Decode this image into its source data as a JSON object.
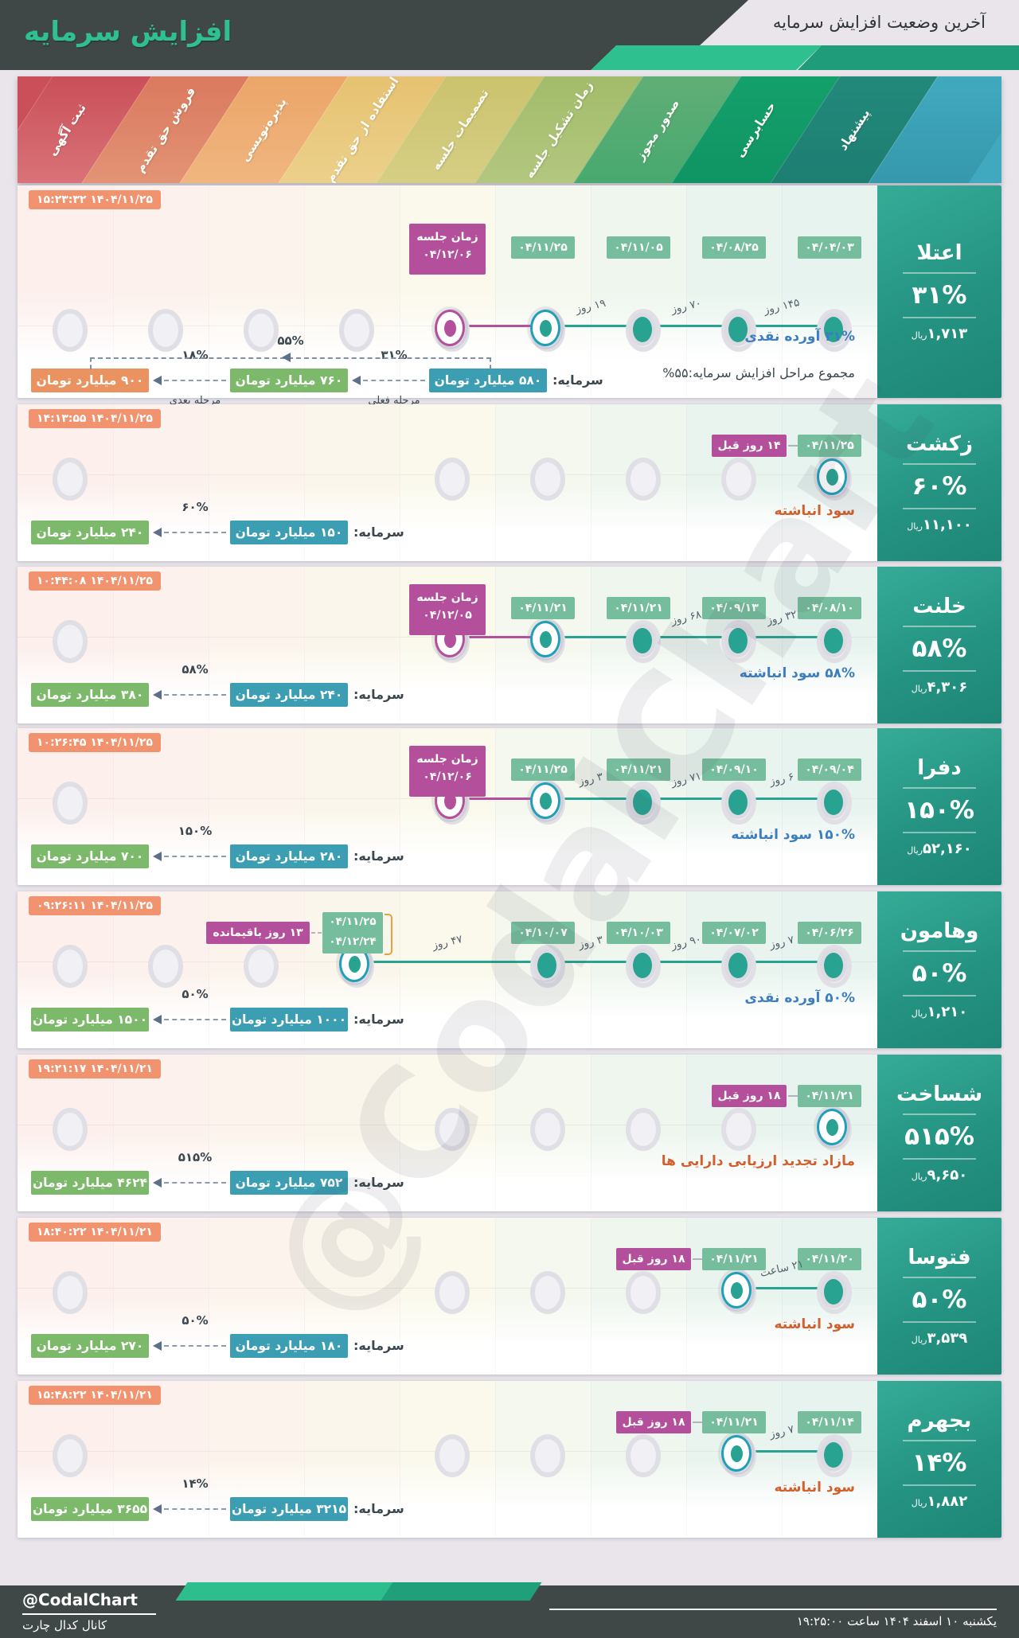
{
  "theme": {
    "accent_green": "#2ebd8d",
    "header_bg": "#3f4846",
    "page_bg": "#e9e5eb",
    "timestamp_badge": "#f2936f",
    "date_badge": "#76bd9e",
    "magenta": "#b4509b",
    "teal_dot": "#28a392",
    "ring_teal": "#1f9fb8",
    "cap_teal": "#3b9eb3",
    "cap_green": "#7cb96a",
    "cap_orange": "#eb9261",
    "note_blue": "#3d7ec1",
    "note_orange": "#d2602f",
    "range_bracket": "#e8a13c"
  },
  "header": {
    "title": "افزایش سرمایه",
    "subtitle": "آخرین وضعیت افزایش سرمایه"
  },
  "ribbon": {
    "stages": [
      {
        "label": "ثبت آگهی",
        "c1": "#ca4f58",
        "c2": "#d97379"
      },
      {
        "label": "فروش حق تقدم",
        "c1": "#da795e",
        "c2": "#e39375"
      },
      {
        "label": "پذیره‌نویسی",
        "c1": "#eba569",
        "c2": "#f0b67f"
      },
      {
        "label": "استفاده از حق تقدم",
        "c1": "#e6c271",
        "c2": "#ecd18b"
      },
      {
        "label": "تصمیمات جلسه",
        "c1": "#cbc36d",
        "c2": "#d6ce84"
      },
      {
        "label": "زمان تشکیل جلسه",
        "c1": "#a2bc6a",
        "c2": "#b3c77f"
      },
      {
        "label": "صدور مجوز",
        "c1": "#60ae77",
        "c2": "#47a96e"
      },
      {
        "label": "حسابرسی",
        "c1": "#14a06b",
        "c2": "#0f9463"
      },
      {
        "label": "پیشنهاد",
        "c1": "#22897b",
        "c2": "#1d7e72"
      },
      {
        "label": "",
        "c1": "#41a9bf",
        "c2": "#3698ac"
      }
    ]
  },
  "watermark": "@CodalChart",
  "rows": [
    {
      "company": "اعتلا",
      "percent": "۳۱%",
      "price": "۱,۷۱۳",
      "price_unit": "ریال",
      "timestamp": "۱۴۰۴/۱۱/۲۵ ۱۵:۲۳:۳۲",
      "tall": true,
      "placeholders": [
        1,
        2,
        3,
        4
      ],
      "meeting": {
        "col": 5,
        "title": "زمان جلسه",
        "date": "۰۴/۱۲/۰۶"
      },
      "events": [
        {
          "col": 6,
          "date": "۰۴/۱۱/۲۵",
          "ring": true
        },
        {
          "col": 7,
          "date": "۰۴/۱۱/۰۵"
        },
        {
          "col": 8,
          "date": "۰۴/۰۸/۲۵"
        },
        {
          "col": 9,
          "date": "۰۴/۰۴/۰۳"
        }
      ],
      "gaps": [
        {
          "a": 6,
          "b": 7,
          "label": "۱۹ روز"
        },
        {
          "a": 7,
          "b": 8,
          "label": "۷۰ روز"
        },
        {
          "a": 8,
          "b": 9,
          "label": "۱۴۵ روز"
        }
      ],
      "note": {
        "text": "۳۱% آورده نقدی",
        "color": "blue"
      },
      "note2": "مجموع مراحل افزایش سرمایه:۵۵%",
      "capital": {
        "label": "سرمایه:",
        "base": "۵۸۰ میلیارد تومان",
        "stages": [
          {
            "percent": "۳۱%",
            "value": "۷۶۰ میلیارد تومان",
            "tag": "مرحله فعلی",
            "color": "green"
          },
          {
            "percent": "۱۸%",
            "value": "۹۰۰ میلیارد تومان",
            "tag": "مرحله بعدی",
            "color": "orange"
          }
        ],
        "total_percent": "۵۵%"
      }
    },
    {
      "company": "زکشت",
      "percent": "۶۰%",
      "price": "۱۱,۱۰۰",
      "price_unit": "ریال",
      "timestamp": "۱۴۰۴/۱۱/۲۵ ۱۴:۱۳:۵۵",
      "placeholders": [
        1,
        5,
        6,
        7,
        8
      ],
      "prev": {
        "col": 9,
        "label": "۱۴ روز قبل"
      },
      "events": [
        {
          "col": 9,
          "date": "۰۴/۱۱/۲۵",
          "ring": true
        }
      ],
      "gaps": [],
      "note": {
        "text": "سود انباشته",
        "color": "orange"
      },
      "capital": {
        "label": "سرمایه:",
        "base": "۱۵۰ میلیارد تومان",
        "stages": [
          {
            "percent": "۶۰%",
            "value": "۲۴۰ میلیارد تومان",
            "color": "green"
          }
        ]
      }
    },
    {
      "company": "خلنت",
      "percent": "۵۸%",
      "price": "۴,۳۰۶",
      "price_unit": "ریال",
      "timestamp": "۱۴۰۴/۱۱/۲۵ ۱۰:۴۴:۰۸",
      "placeholders": [
        1
      ],
      "meeting": {
        "col": 5,
        "title": "زمان جلسه",
        "date": "۰۴/۱۲/۰۵"
      },
      "events": [
        {
          "col": 6,
          "date": "۰۴/۱۱/۲۱",
          "ring": true
        },
        {
          "col": 7,
          "date": "۰۴/۱۱/۲۱"
        },
        {
          "col": 8,
          "date": "۰۴/۰۹/۱۳"
        },
        {
          "col": 9,
          "date": "۰۴/۰۸/۱۰"
        }
      ],
      "gaps": [
        {
          "a": 7,
          "b": 8,
          "label": "۶۸ روز"
        },
        {
          "a": 8,
          "b": 9,
          "label": "۳۲ روز"
        }
      ],
      "note": {
        "text": "۵۸% سود انباشته",
        "color": "blue"
      },
      "capital": {
        "label": "سرمایه:",
        "base": "۲۴۰ میلیارد تومان",
        "stages": [
          {
            "percent": "۵۸%",
            "value": "۳۸۰ میلیارد تومان",
            "color": "green"
          }
        ]
      }
    },
    {
      "company": "دفرا",
      "percent": "۱۵۰%",
      "price": "۵۲,۱۶۰",
      "price_unit": "ریال",
      "timestamp": "۱۴۰۴/۱۱/۲۵ ۱۰:۲۶:۴۵",
      "placeholders": [
        1
      ],
      "meeting": {
        "col": 5,
        "title": "زمان جلسه",
        "date": "۰۴/۱۲/۰۶"
      },
      "events": [
        {
          "col": 6,
          "date": "۰۴/۱۱/۲۵",
          "ring": true
        },
        {
          "col": 7,
          "date": "۰۴/۱۱/۲۱"
        },
        {
          "col": 8,
          "date": "۰۴/۰۹/۱۰"
        },
        {
          "col": 9,
          "date": "۰۴/۰۹/۰۴"
        }
      ],
      "gaps": [
        {
          "a": 6,
          "b": 7,
          "label": "۳ روز"
        },
        {
          "a": 7,
          "b": 8,
          "label": "۷۱ روز"
        },
        {
          "a": 8,
          "b": 9,
          "label": "۶ روز"
        }
      ],
      "note": {
        "text": "۱۵۰% سود انباشته",
        "color": "blue"
      },
      "capital": {
        "label": "سرمایه:",
        "base": "۲۸۰ میلیارد تومان",
        "stages": [
          {
            "percent": "۱۵۰%",
            "value": "۷۰۰ میلیارد تومان",
            "color": "green"
          }
        ]
      }
    },
    {
      "company": "وهامون",
      "percent": "۵۰%",
      "price": "۱,۲۱۰",
      "price_unit": "ریال",
      "timestamp": "۱۴۰۴/۱۱/۲۵ ۰۹:۲۶:۱۱",
      "placeholders": [
        1,
        2,
        3
      ],
      "range": {
        "col": 4,
        "dates": [
          "۰۴/۱۱/۲۵",
          "۰۴/۱۲/۲۴"
        ],
        "label": "۱۳ روز باقیمانده"
      },
      "events": [
        {
          "col": 4,
          "ring": true
        },
        {
          "col": 6,
          "date": "۰۴/۱۰/۰۷"
        },
        {
          "col": 7,
          "date": "۰۴/۱۰/۰۳"
        },
        {
          "col": 8,
          "date": "۰۴/۰۷/۰۲"
        },
        {
          "col": 9,
          "date": "۰۴/۰۶/۲۶"
        }
      ],
      "gaps": [
        {
          "a": 4,
          "b": 6,
          "label": "۴۷ روز"
        },
        {
          "a": 6,
          "b": 7,
          "label": "۳ روز"
        },
        {
          "a": 7,
          "b": 8,
          "label": "۹۰ روز"
        },
        {
          "a": 8,
          "b": 9,
          "label": "۷ روز"
        }
      ],
      "note": {
        "text": "۵۰% آورده نقدی",
        "color": "blue"
      },
      "capital": {
        "label": "سرمایه:",
        "base": "۱۰۰۰ میلیارد تومان",
        "stages": [
          {
            "percent": "۵۰%",
            "value": "۱۵۰۰ میلیارد تومان",
            "color": "green"
          }
        ]
      }
    },
    {
      "company": "شساخت",
      "percent": "۵۱۵%",
      "price": "۹,۶۵۰",
      "price_unit": "ریال",
      "timestamp": "۱۴۰۴/۱۱/۲۱ ۱۹:۲۱:۱۷",
      "placeholders": [
        1,
        5,
        6,
        7,
        8
      ],
      "prev": {
        "col": 9,
        "label": "۱۸ روز قبل"
      },
      "events": [
        {
          "col": 9,
          "date": "۰۴/۱۱/۲۱",
          "ring": true
        }
      ],
      "gaps": [],
      "note": {
        "text": "مازاد تجدید ارزیابی دارایی ها",
        "color": "orange"
      },
      "capital": {
        "label": "سرمایه:",
        "base": "۷۵۲ میلیارد تومان",
        "stages": [
          {
            "percent": "۵۱۵%",
            "value": "۴۶۲۴ میلیارد تومان",
            "color": "green"
          }
        ]
      }
    },
    {
      "company": "فتوسا",
      "percent": "۵۰%",
      "price": "۳,۵۳۹",
      "price_unit": "ریال",
      "timestamp": "۱۴۰۴/۱۱/۲۱ ۱۸:۴۰:۲۲",
      "placeholders": [
        1,
        5,
        6,
        7
      ],
      "prev": {
        "col": 8,
        "label": "۱۸ روز قبل"
      },
      "events": [
        {
          "col": 8,
          "date": "۰۴/۱۱/۲۱",
          "ring": true
        },
        {
          "col": 9,
          "date": "۰۴/۱۱/۲۰"
        }
      ],
      "gaps": [
        {
          "a": 8,
          "b": 9,
          "label": "۲۱ ساعت"
        }
      ],
      "note": {
        "text": "سود انباشته",
        "color": "orange"
      },
      "capital": {
        "label": "سرمایه:",
        "base": "۱۸۰ میلیارد تومان",
        "stages": [
          {
            "percent": "۵۰%",
            "value": "۲۷۰ میلیارد تومان",
            "color": "green"
          }
        ]
      }
    },
    {
      "company": "بجهرم",
      "percent": "۱۴%",
      "price": "۱,۸۸۲",
      "price_unit": "ریال",
      "timestamp": "۱۴۰۴/۱۱/۲۱ ۱۵:۴۸:۲۲",
      "placeholders": [
        1,
        5,
        6,
        7
      ],
      "prev": {
        "col": 8,
        "label": "۱۸ روز قبل"
      },
      "events": [
        {
          "col": 8,
          "date": "۰۴/۱۱/۲۱",
          "ring": true
        },
        {
          "col": 9,
          "date": "۰۴/۱۱/۱۴"
        }
      ],
      "gaps": [
        {
          "a": 8,
          "b": 9,
          "label": "۷ روز"
        }
      ],
      "note": {
        "text": "سود انباشته",
        "color": "orange"
      },
      "capital": {
        "label": "سرمایه:",
        "base": "۳۲۱۵ میلیارد تومان",
        "stages": [
          {
            "percent": "۱۴%",
            "value": "۳۶۵۵ میلیارد تومان",
            "color": "green"
          }
        ]
      }
    }
  ],
  "footer": {
    "handle": "@CodalChart",
    "channel": "کانال کدال چارت",
    "datetime": "یکشنبه ۱۰ اسفند ۱۴۰۴ ساعت ۱۹:۲۵:۰۰"
  },
  "chart_data": {
    "type": "table",
    "title": "آخرین وضعیت افزایش سرمایه",
    "columns": [
      "company",
      "increase_percent",
      "price_rial",
      "funding_source",
      "current_capital_b_toman",
      "new_capital_b_toman",
      "key_date"
    ],
    "rows": [
      [
        "اعتلا",
        31,
        1713,
        "آورده نقدی",
        580,
        760,
        "زمان جلسه ۰۴/۱۲/۰۶"
      ],
      [
        "زکشت",
        60,
        11100,
        "سود انباشته",
        150,
        240,
        "۰۴/۱۱/۲۵"
      ],
      [
        "خلنت",
        58,
        4306,
        "سود انباشته",
        240,
        380,
        "زمان جلسه ۰۴/۱۲/۰۵"
      ],
      [
        "دفرا",
        150,
        52160,
        "سود انباشته",
        280,
        700,
        "زمان جلسه ۰۴/۱۲/۰۶"
      ],
      [
        "وهامون",
        50,
        1210,
        "آورده نقدی",
        1000,
        1500,
        "۰۴/۱۱/۲۵ تا ۰۴/۱۲/۲۴"
      ],
      [
        "شساخت",
        515,
        9650,
        "مازاد تجدید ارزیابی دارایی ها",
        752,
        4624,
        "۰۴/۱۱/۲۱"
      ],
      [
        "فتوسا",
        50,
        3539,
        "سود انباشته",
        180,
        270,
        "۰۴/۱۱/۲۰"
      ],
      [
        "بجهرم",
        14,
        1882,
        "سود انباشته",
        3215,
        3655,
        "۰۴/۱۱/۱۴"
      ]
    ],
    "notes": "total for اعتلا is 31%+18%=55%; next stage 900 b toman"
  }
}
